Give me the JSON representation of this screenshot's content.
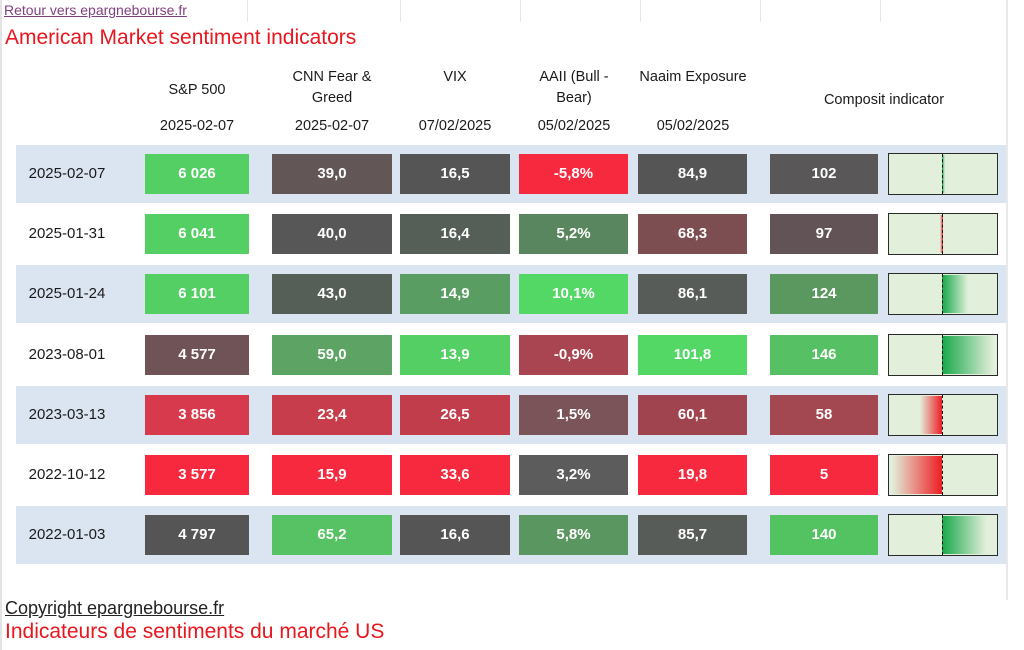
{
  "back_link": "Retour vers epargnebourse.fr",
  "title": "American Market sentiment indicators",
  "headers": [
    {
      "name": "S&P 500",
      "date": "2025-02-07"
    },
    {
      "name": "CNN Fear & Greed",
      "date": "2025-02-07"
    },
    {
      "name": "VIX",
      "date": "07/02/2025"
    },
    {
      "name": "AAII (Bull - Bear)",
      "date": "05/02/2025"
    },
    {
      "name": "Naaim Exposure",
      "date": "05/02/2025"
    },
    {
      "name": "Composit indicator",
      "date": ""
    }
  ],
  "rows": [
    {
      "date": "2025-02-07",
      "sp500": "6 026",
      "cnn": "39,0",
      "vix": "16,5",
      "aaii": "-5,8%",
      "naaim": "84,9",
      "composite": "102",
      "gauge": 102,
      "colors": {
        "sp500": "#53cf63",
        "cnn": "#625656",
        "vix": "#555555",
        "aaii": "#f7293f",
        "naaim": "#555555",
        "composite": "#595757"
      }
    },
    {
      "date": "2025-01-31",
      "sp500": "6 041",
      "cnn": "40,0",
      "vix": "16,4",
      "aaii": "5,2%",
      "naaim": "68,3",
      "composite": "97",
      "gauge": 97,
      "colors": {
        "sp500": "#53cf63",
        "cnn": "#575757",
        "vix": "#565e58",
        "aaii": "#5a865f",
        "naaim": "#7c4e52",
        "composite": "#625456"
      }
    },
    {
      "date": "2025-01-24",
      "sp500": "6 101",
      "cnn": "43,0",
      "vix": "14,9",
      "aaii": "10,1%",
      "naaim": "86,1",
      "composite": "124",
      "gauge": 124,
      "colors": {
        "sp500": "#53cf63",
        "cnn": "#565f57",
        "vix": "#5a9d63",
        "aaii": "#53d865",
        "naaim": "#575c58",
        "composite": "#5a985f"
      }
    },
    {
      "date": "2023-08-01",
      "sp500": "4 577",
      "cnn": "59,0",
      "vix": "13,9",
      "aaii": "-0,9%",
      "naaim": "101,8",
      "composite": "146",
      "gauge": 146,
      "colors": {
        "sp500": "#705357",
        "cnn": "#5da464",
        "vix": "#53cf63",
        "aaii": "#a84550",
        "naaim": "#53d865",
        "composite": "#56c064"
      }
    },
    {
      "date": "2023-03-13",
      "sp500": "3 856",
      "cnn": "23,4",
      "vix": "26,5",
      "aaii": "1,5%",
      "naaim": "60,1",
      "composite": "58",
      "gauge": 58,
      "colors": {
        "sp500": "#d63a4c",
        "cnn": "#c83d4b",
        "vix": "#c23d4b",
        "aaii": "#7a5458",
        "naaim": "#a04550",
        "composite": "#a34850"
      }
    },
    {
      "date": "2022-10-12",
      "sp500": "3 577",
      "cnn": "15,9",
      "vix": "33,6",
      "aaii": "3,2%",
      "naaim": "19,8",
      "composite": "5",
      "gauge": 5,
      "colors": {
        "sp500": "#f7293f",
        "cnn": "#f7293f",
        "vix": "#f7293f",
        "aaii": "#5b5c5b",
        "naaim": "#f7293f",
        "composite": "#f7293f"
      }
    },
    {
      "date": "2022-01-03",
      "sp500": "4 797",
      "cnn": "65,2",
      "vix": "16,6",
      "aaii": "5,8%",
      "naaim": "85,7",
      "composite": "140",
      "gauge": 140,
      "colors": {
        "sp500": "#555555",
        "cnn": "#56c264",
        "vix": "#555555",
        "aaii": "#5a965f",
        "naaim": "#585c58",
        "composite": "#53c361"
      }
    }
  ],
  "copyright": "Copyright epargnebourse.fr",
  "subtitle": "Indicateurs de sentiments du marché US"
}
